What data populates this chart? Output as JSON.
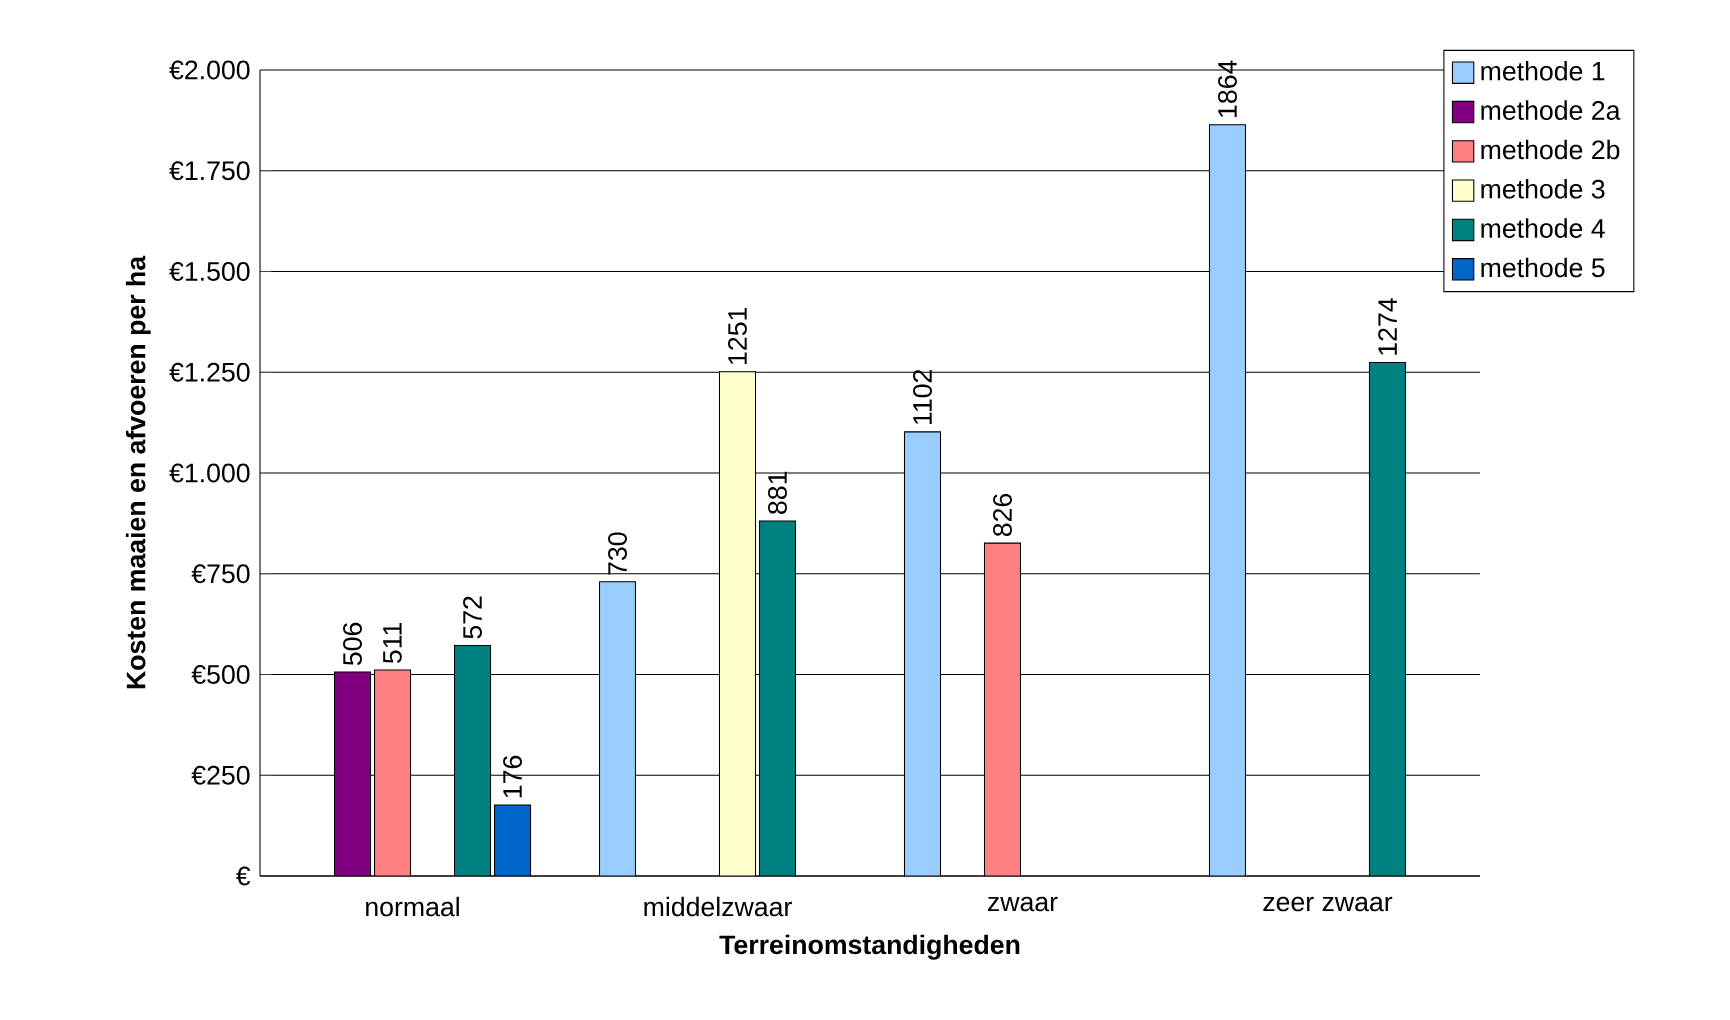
{
  "chart_data": {
    "type": "bar",
    "xlabel": "Terreinomstandigheden",
    "ylabel": "Kosten maaien en afvoeren per ha",
    "categories": [
      "normaal",
      "middelzwaar",
      "zwaar",
      "zeer zwaar"
    ],
    "series": [
      {
        "name": "methode 1",
        "color": "#99ccff",
        "values": [
          null,
          730,
          1102,
          1864
        ]
      },
      {
        "name": "methode 2a",
        "color": "#800080",
        "values": [
          506,
          null,
          null,
          null
        ]
      },
      {
        "name": "methode 2b",
        "color": "#ff8080",
        "values": [
          511,
          null,
          826,
          null
        ]
      },
      {
        "name": "methode 3",
        "color": "#ffffcc",
        "values": [
          null,
          1251,
          null,
          null
        ]
      },
      {
        "name": "methode 4",
        "color": "#008080",
        "values": [
          572,
          881,
          null,
          1274
        ]
      },
      {
        "name": "methode 5",
        "color": "#0066cc",
        "values": [
          176,
          null,
          null,
          null
        ]
      }
    ],
    "ylim": [
      0,
      2000
    ],
    "yticks": [
      {
        "value": 0,
        "label": "€"
      },
      {
        "value": 250,
        "label": "€250"
      },
      {
        "value": 500,
        "label": "€500"
      },
      {
        "value": 750,
        "label": "€750"
      },
      {
        "value": 1000,
        "label": "€1.000"
      },
      {
        "value": 1250,
        "label": "€1.250"
      },
      {
        "value": 1500,
        "label": "€1.500"
      },
      {
        "value": 1750,
        "label": "€1.750"
      },
      {
        "value": 2000,
        "label": "€2.000"
      }
    ],
    "grid": "y",
    "legend": "top right",
    "data_labels": true
  }
}
